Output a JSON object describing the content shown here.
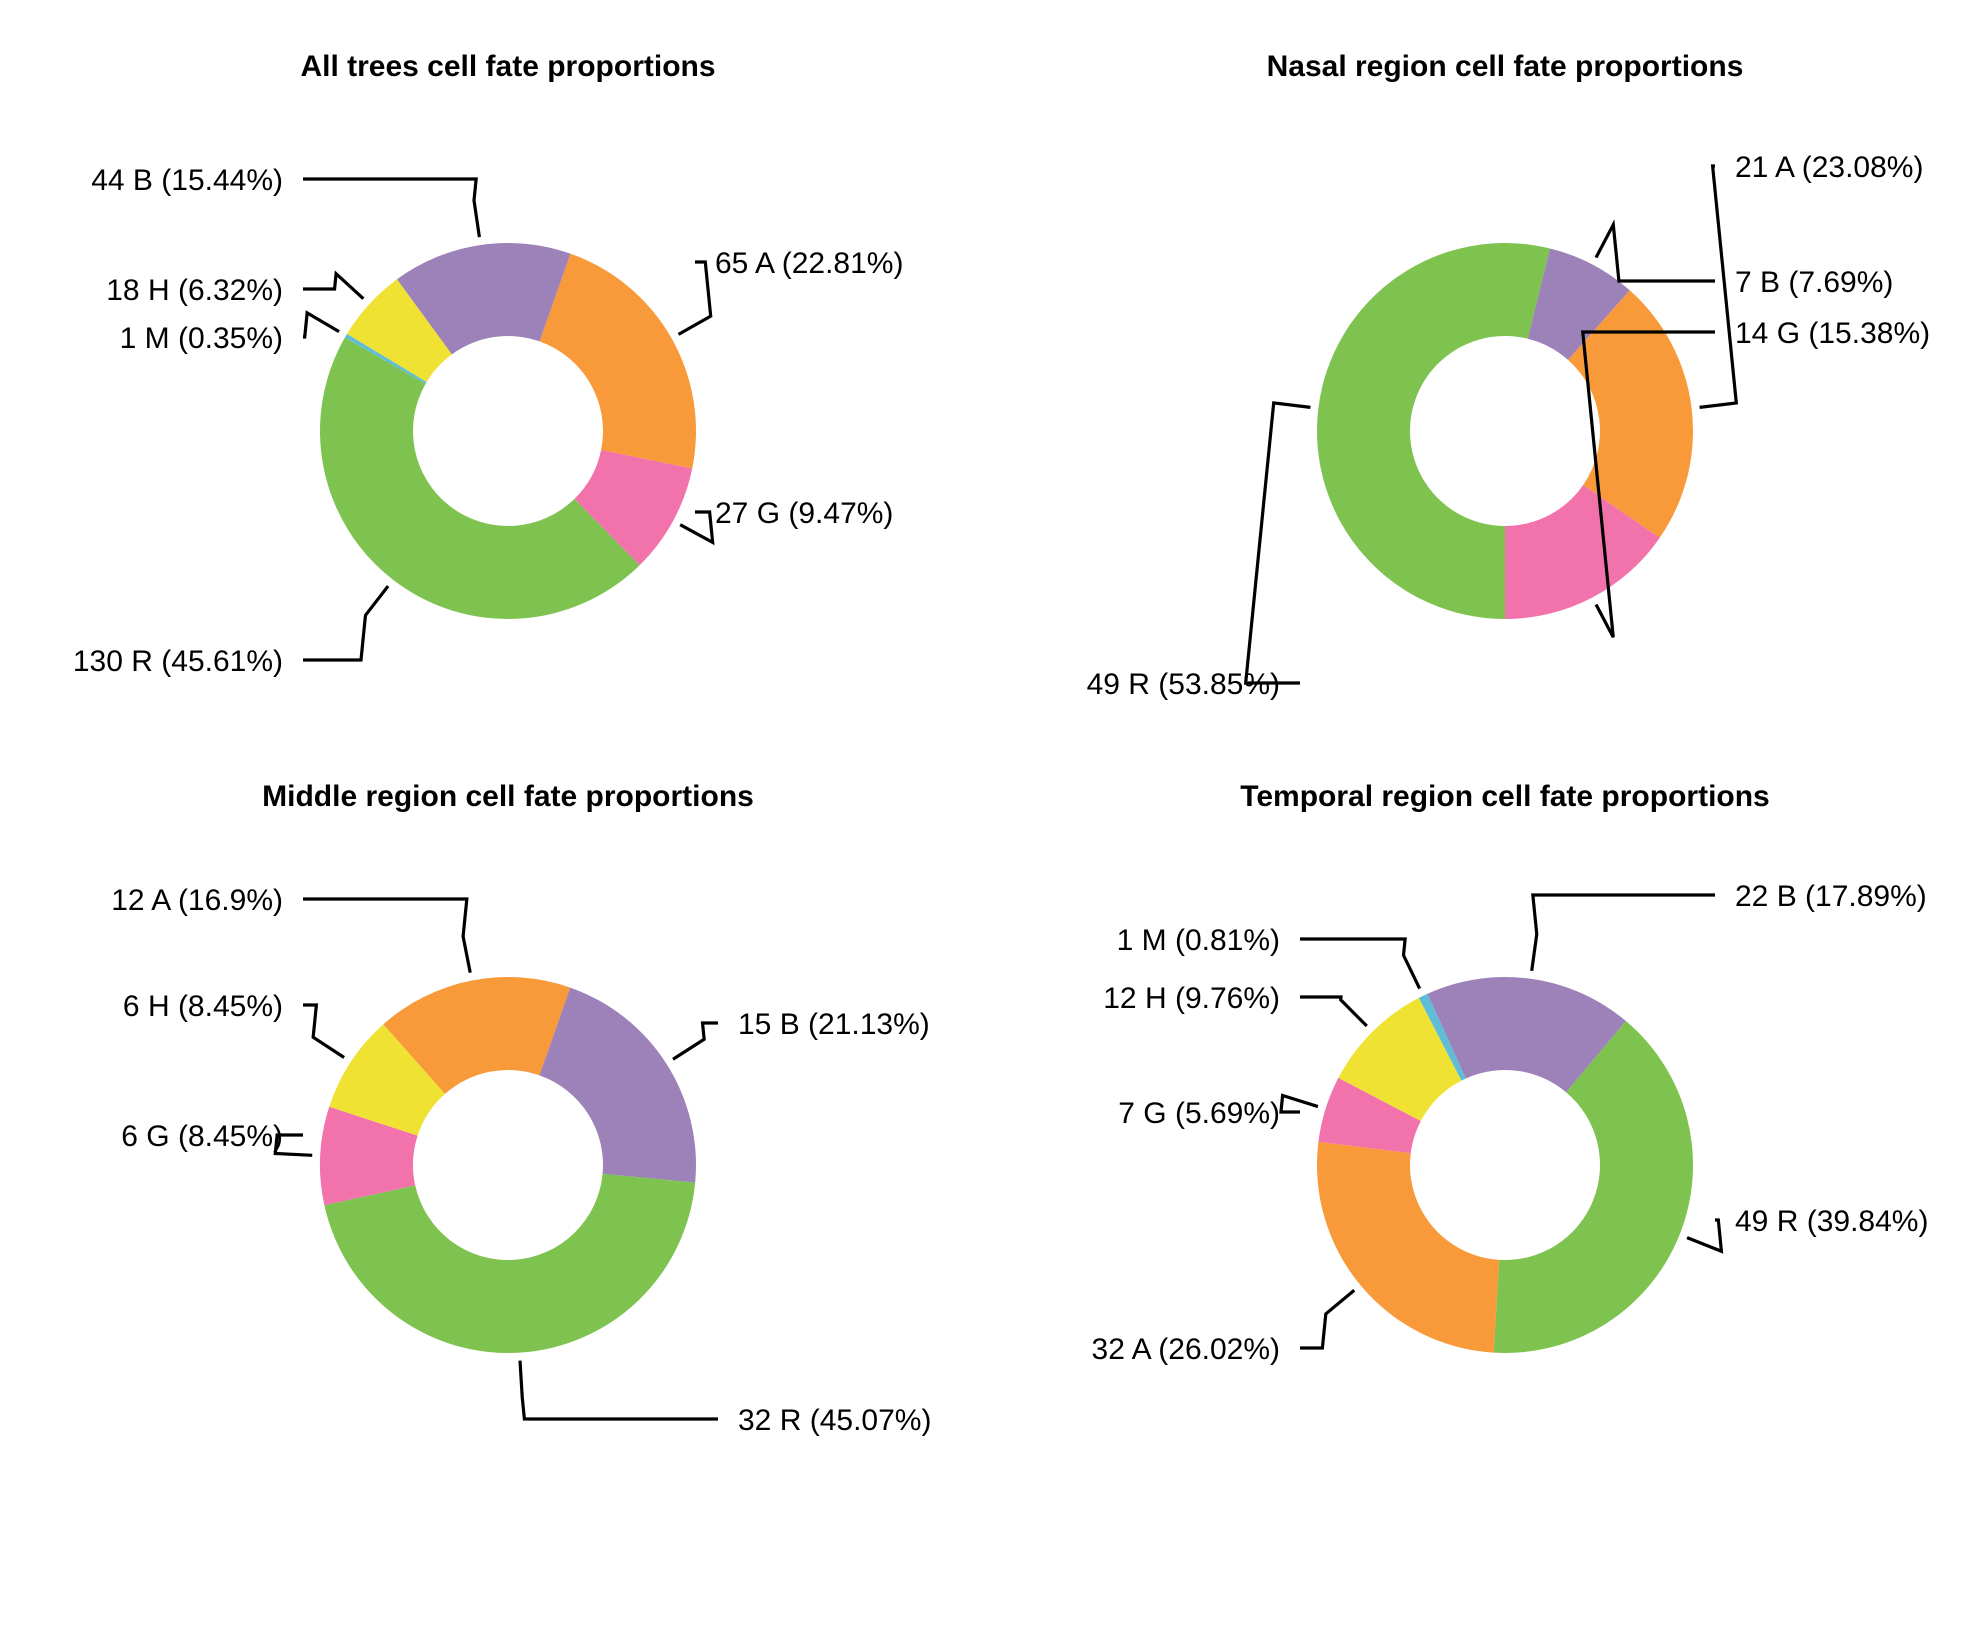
{
  "colors": {
    "A": "#f89a3a",
    "B": "#9c82b8",
    "G": "#f273ac",
    "H": "#f0e232",
    "M": "#5ebed8",
    "R": "#7ec350"
  },
  "chart_data": [
    {
      "type": "pie",
      "title": "All trees cell fate proportions",
      "slices": [
        {
          "category": "A",
          "count": 65,
          "percent": 22.81,
          "label": "65 A (22.81%)"
        },
        {
          "category": "G",
          "count": 27,
          "percent": 9.47,
          "label": "27 G (9.47%)"
        },
        {
          "category": "R",
          "count": 130,
          "percent": 45.61,
          "label": "130 R (45.61%)"
        },
        {
          "category": "M",
          "count": 1,
          "percent": 0.35,
          "label": "1 M (0.35%)"
        },
        {
          "category": "H",
          "count": 18,
          "percent": 6.32,
          "label": "18 H (6.32%)"
        },
        {
          "category": "B",
          "count": 44,
          "percent": 15.44,
          "label": "44 B (15.44%)"
        }
      ]
    },
    {
      "type": "pie",
      "title": "Nasal region cell fate proportions",
      "slices": [
        {
          "category": "A",
          "count": 21,
          "percent": 23.08,
          "label": "21 A (23.08%)"
        },
        {
          "category": "G",
          "count": 14,
          "percent": 15.38,
          "label": "14 G (15.38%)"
        },
        {
          "category": "R",
          "count": 49,
          "percent": 53.85,
          "label": "49 R (53.85%)"
        },
        {
          "category": "B",
          "count": 7,
          "percent": 7.69,
          "label": "7 B (7.69%)"
        }
      ]
    },
    {
      "type": "pie",
      "title": "Middle region cell fate proportions",
      "slices": [
        {
          "category": "B",
          "count": 15,
          "percent": 21.13,
          "label": "15 B (21.13%)"
        },
        {
          "category": "R",
          "count": 32,
          "percent": 45.07,
          "label": "32 R (45.07%)"
        },
        {
          "category": "G",
          "count": 6,
          "percent": 8.45,
          "label": "6 G (8.45%)"
        },
        {
          "category": "H",
          "count": 6,
          "percent": 8.45,
          "label": "6 H (8.45%)"
        },
        {
          "category": "A",
          "count": 12,
          "percent": 16.9,
          "label": "12 A (16.9%)"
        }
      ]
    },
    {
      "type": "pie",
      "title": "Temporal region cell fate proportions",
      "slices": [
        {
          "category": "R",
          "count": 49,
          "percent": 39.84,
          "label": "49 R (39.84%)"
        },
        {
          "category": "A",
          "count": 32,
          "percent": 26.02,
          "label": "32 A (26.02%)"
        },
        {
          "category": "G",
          "count": 7,
          "percent": 5.69,
          "label": "7 G (5.69%)"
        },
        {
          "category": "H",
          "count": 12,
          "percent": 9.76,
          "label": "12 H (9.76%)"
        },
        {
          "category": "M",
          "count": 1,
          "percent": 0.81,
          "label": "1 M (0.81%)"
        },
        {
          "category": "B",
          "count": 22,
          "percent": 17.89,
          "label": "22 B (17.89%)"
        }
      ]
    }
  ]
}
